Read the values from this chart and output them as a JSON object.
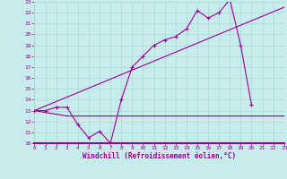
{
  "xlabel": "Windchill (Refroidissement éolien,°C)",
  "xlim": [
    0,
    23
  ],
  "ylim": [
    10,
    23
  ],
  "yticks": [
    10,
    11,
    12,
    13,
    14,
    15,
    16,
    17,
    18,
    19,
    20,
    21,
    22,
    23
  ],
  "xticks": [
    0,
    1,
    2,
    3,
    4,
    5,
    6,
    7,
    8,
    9,
    10,
    11,
    12,
    13,
    14,
    15,
    16,
    17,
    18,
    19,
    20,
    21,
    22,
    23
  ],
  "bg_color": "#c8ecec",
  "grid_color": "#a8d8d8",
  "line_color": "#990099",
  "line1_x": [
    0,
    1,
    2,
    3,
    4,
    5,
    6,
    7,
    8,
    9,
    10,
    11,
    12,
    13,
    14,
    15,
    16,
    17,
    18,
    19,
    20
  ],
  "line1_y": [
    13.0,
    13.0,
    13.3,
    13.3,
    11.7,
    10.5,
    11.1,
    10.0,
    14.0,
    17.0,
    18.0,
    19.0,
    19.5,
    19.8,
    20.5,
    22.2,
    21.5,
    22.0,
    23.2,
    19.0,
    13.5
  ],
  "line2_x": [
    0,
    23
  ],
  "line2_y": [
    13.0,
    22.5
  ],
  "line3_x": [
    0,
    3,
    10,
    19,
    20,
    23
  ],
  "line3_y": [
    13.0,
    12.5,
    12.5,
    12.5,
    12.5,
    12.5
  ]
}
